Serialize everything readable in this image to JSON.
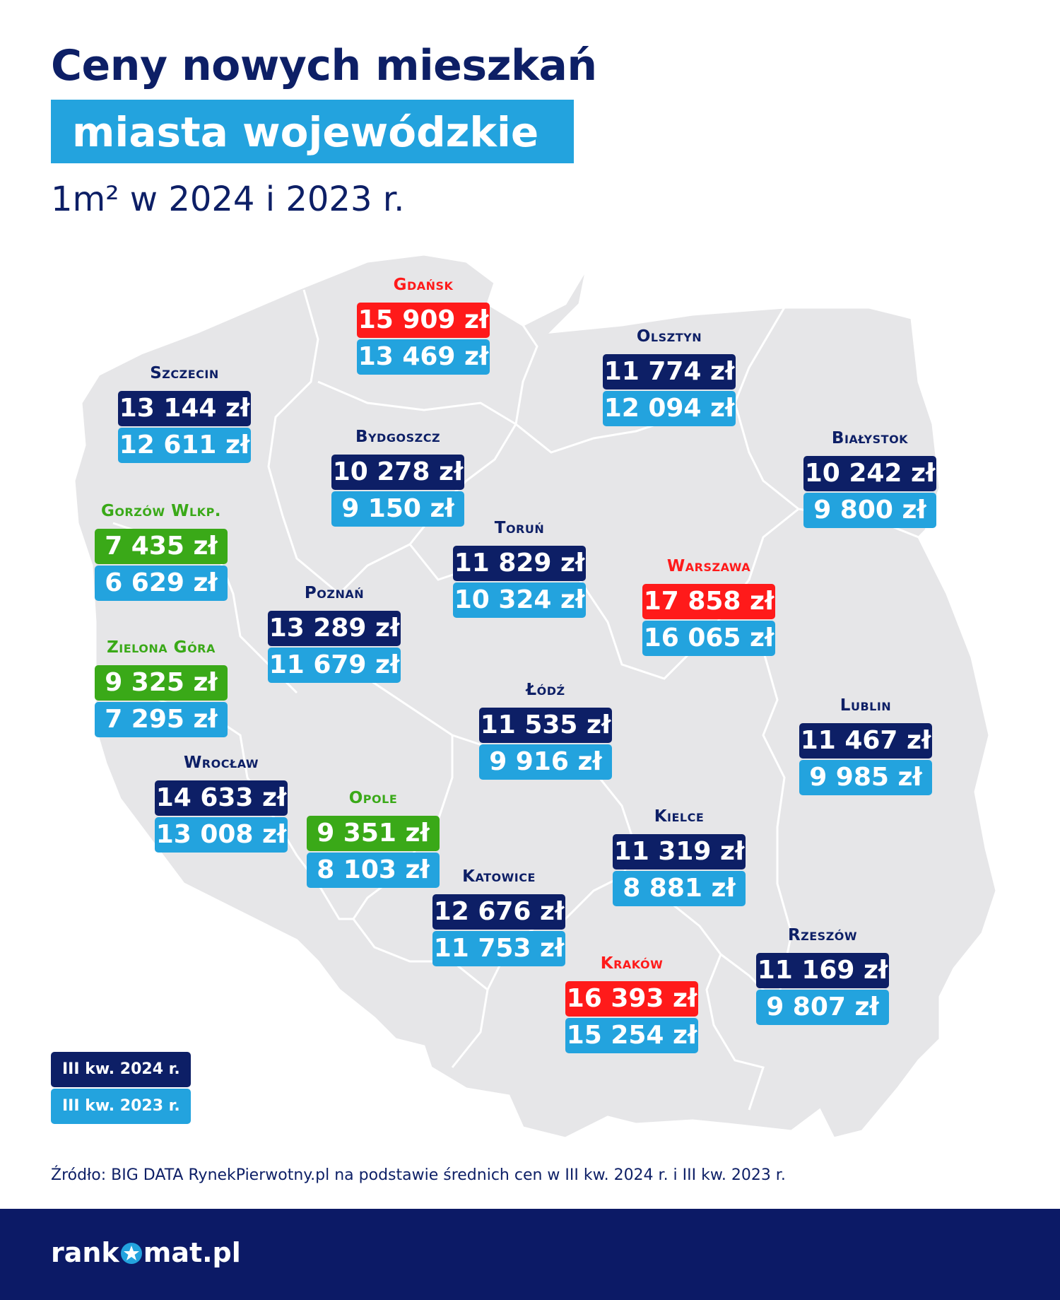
{
  "header": {
    "title": "Ceny nowych mieszkań",
    "subtitle": "miasta wojewódzkie",
    "unit": "1m² w 2024 i 2023 r."
  },
  "colors": {
    "navy": "#0d1f66",
    "light_blue": "#23a3de",
    "red": "#ff1a1a",
    "green": "#3aa918",
    "map_fill": "#e6e6e8"
  },
  "legend": {
    "q3_2024": "III kw. 2024 r.",
    "q3_2023": "III kw. 2023 r."
  },
  "cities": [
    {
      "name": "Gdańsk",
      "price_2024": "15 909 zł",
      "price_2023": "13 469 zł",
      "category": "red"
    },
    {
      "name": "Olsztyn",
      "price_2024": "11 774 zł",
      "price_2023": "12 094 zł",
      "category": "navy"
    },
    {
      "name": "Szczecin",
      "price_2024": "13 144 zł",
      "price_2023": "12 611 zł",
      "category": "navy"
    },
    {
      "name": "Bydgoszcz",
      "price_2024": "10 278 zł",
      "price_2023": "9 150 zł",
      "category": "navy"
    },
    {
      "name": "Białystok",
      "price_2024": "10 242 zł",
      "price_2023": "9 800 zł",
      "category": "navy"
    },
    {
      "name": "Gorzów Wlkp.",
      "price_2024": "7 435 zł",
      "price_2023": "6 629 zł",
      "category": "green"
    },
    {
      "name": "Toruń",
      "price_2024": "11 829 zł",
      "price_2023": "10 324 zł",
      "category": "navy"
    },
    {
      "name": "Warszawa",
      "price_2024": "17 858 zł",
      "price_2023": "16 065 zł",
      "category": "red"
    },
    {
      "name": "Poznań",
      "price_2024": "13 289 zł",
      "price_2023": "11 679 zł",
      "category": "navy"
    },
    {
      "name": "Zielona Góra",
      "price_2024": "9 325 zł",
      "price_2023": "7 295 zł",
      "category": "green"
    },
    {
      "name": "Łódź",
      "price_2024": "11 535 zł",
      "price_2023": "9 916 zł",
      "category": "navy"
    },
    {
      "name": "Lublin",
      "price_2024": "11 467 zł",
      "price_2023": "9 985 zł",
      "category": "navy"
    },
    {
      "name": "Wrocław",
      "price_2024": "14 633 zł",
      "price_2023": "13 008 zł",
      "category": "navy"
    },
    {
      "name": "Opole",
      "price_2024": "9 351 zł",
      "price_2023": "8 103 zł",
      "category": "green"
    },
    {
      "name": "Kielce",
      "price_2024": "11 319 zł",
      "price_2023": "8 881 zł",
      "category": "navy"
    },
    {
      "name": "Katowice",
      "price_2024": "12 676 zł",
      "price_2023": "11 753 zł",
      "category": "navy"
    },
    {
      "name": "Kraków",
      "price_2024": "16 393 zł",
      "price_2023": "15 254 zł",
      "category": "red"
    },
    {
      "name": "Rzeszów",
      "price_2024": "11 169 zł",
      "price_2023": "9 807 zł",
      "category": "navy"
    }
  ],
  "source": "Źródło: BIG DATA RynekPierwotny.pl na podstawie średnich cen w III kw. 2024 r. i III kw. 2023 r.",
  "footer": {
    "logo_left": "rank",
    "logo_right": "mat.pl"
  }
}
